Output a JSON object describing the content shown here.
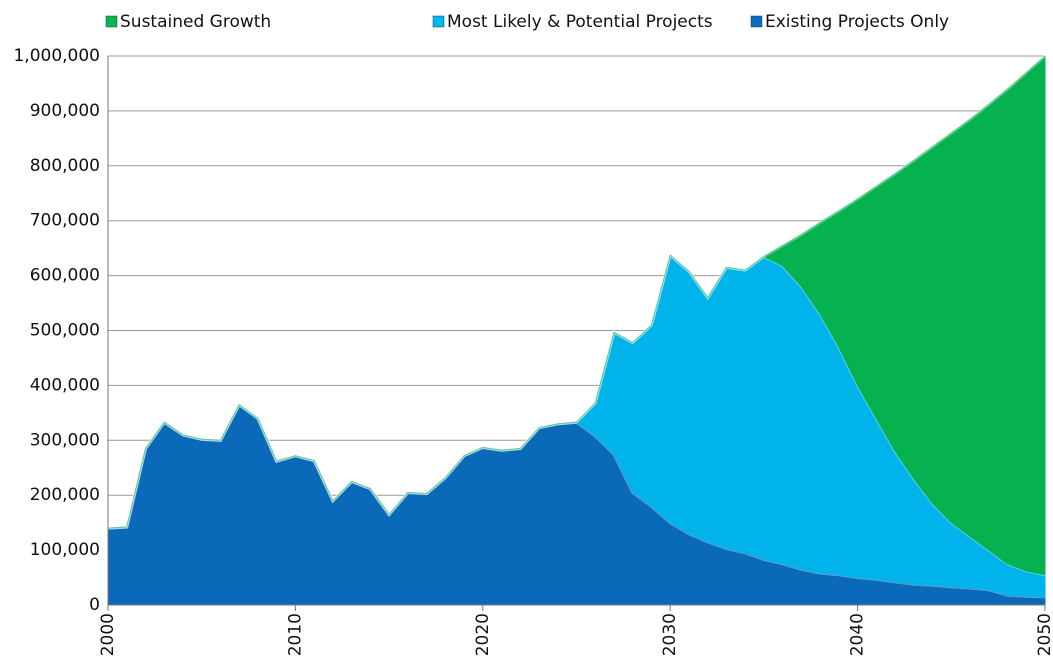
{
  "chart_data": {
    "type": "stacked_area",
    "x": [
      2000,
      2001,
      2002,
      2003,
      2004,
      2005,
      2006,
      2007,
      2008,
      2009,
      2010,
      2011,
      2012,
      2013,
      2014,
      2015,
      2016,
      2017,
      2018,
      2019,
      2020,
      2021,
      2022,
      2023,
      2024,
      2025,
      2026,
      2027,
      2028,
      2029,
      2030,
      2031,
      2032,
      2033,
      2034,
      2035,
      2036,
      2037,
      2038,
      2039,
      2040,
      2041,
      2042,
      2043,
      2044,
      2045,
      2046,
      2047,
      2048,
      2049,
      2050
    ],
    "series": [
      {
        "name": "Existing Projects Only",
        "color": "#0b6cc0",
        "values": [
          140000,
          142000,
          285000,
          333000,
          310000,
          302000,
          300000,
          365000,
          340000,
          262000,
          272000,
          263000,
          190000,
          225000,
          212000,
          165000,
          205000,
          203000,
          232000,
          272000,
          287000,
          282000,
          285000,
          323000,
          330000,
          333000,
          308000,
          275000,
          205000,
          180000,
          150000,
          130000,
          115000,
          103000,
          95000,
          83000,
          75000,
          65000,
          58000,
          55000,
          50000,
          47000,
          42000,
          38000,
          36000,
          33000,
          31000,
          28000,
          18000,
          16000,
          15000
        ]
      },
      {
        "name": "Most Likely & Potential Projects",
        "color": "#00b9f1",
        "values": [
          0,
          0,
          0,
          0,
          0,
          0,
          0,
          0,
          0,
          0,
          0,
          0,
          0,
          0,
          0,
          0,
          0,
          0,
          0,
          0,
          0,
          0,
          0,
          0,
          0,
          0,
          60000,
          222000,
          273000,
          330000,
          487000,
          478000,
          445000,
          512000,
          515000,
          552000,
          543000,
          515000,
          472000,
          415000,
          350000,
          293000,
          238000,
          192000,
          149000,
          117000,
          94000,
          72000,
          57000,
          46000,
          40000
        ]
      },
      {
        "name": "Sustained Growth",
        "color": "#06b852",
        "values": [
          0,
          0,
          0,
          0,
          0,
          0,
          0,
          0,
          0,
          0,
          0,
          0,
          0,
          0,
          0,
          0,
          0,
          0,
          0,
          0,
          0,
          0,
          0,
          0,
          0,
          0,
          0,
          0,
          0,
          0,
          0,
          0,
          0,
          0,
          0,
          0,
          37000,
          95000,
          167000,
          248000,
          340000,
          423000,
          506000,
          580000,
          650000,
          710000,
          760000,
          812000,
          865000,
          908000,
          945000
        ]
      }
    ],
    "xlim": [
      2000,
      2050
    ],
    "xticks": [
      2000,
      2010,
      2020,
      2030,
      2040,
      2050
    ],
    "ylim": [
      0,
      1000000
    ],
    "yticks": [
      0,
      {
        "value": 100000,
        "label": "100,000"
      },
      {
        "value": 200000,
        "label": "200,000"
      },
      {
        "value": 300000,
        "label": "300,000"
      },
      {
        "value": 400000,
        "label": "400,000"
      },
      {
        "value": 500000,
        "label": "500,000"
      },
      {
        "value": 600000,
        "label": "600,000"
      },
      {
        "value": 700000,
        "label": "700,000"
      },
      {
        "value": 800000,
        "label": "800,000"
      },
      {
        "value": 900000,
        "label": "900,000"
      },
      {
        "value": 1000000,
        "label": "1,000,000"
      }
    ],
    "grid": true,
    "legend": "top"
  }
}
